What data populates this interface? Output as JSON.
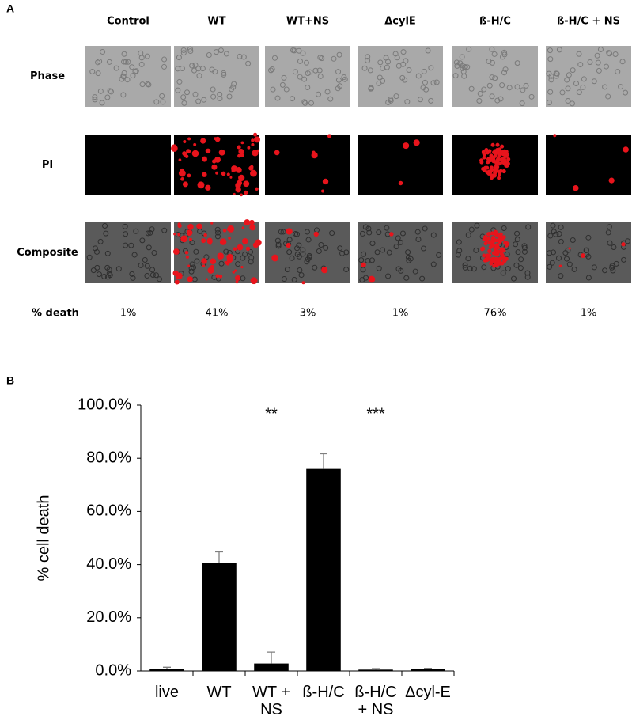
{
  "panel_a": {
    "label": "A",
    "columns": [
      "Control",
      "WT",
      "WT+NS",
      "ΔcylE",
      "ß-H/C",
      "ß-H/C + NS"
    ],
    "rows": [
      "Phase",
      "PI",
      "Composite"
    ],
    "death_label": "% death",
    "death_values": [
      "1%",
      "41%",
      "3%",
      "1%",
      "76%",
      "1%"
    ]
  },
  "chart_data": {
    "type": "bar",
    "panel_label": "B",
    "ylabel": "% cell death",
    "categories": [
      "live",
      "WT",
      "WT +\nNS",
      "ß-H/C",
      "ß-H/C\n+ NS",
      "Δcyl-E"
    ],
    "values": [
      0.7,
      40.5,
      2.8,
      76,
      0.5,
      0.7
    ],
    "errors": [
      0.7,
      4.3,
      4.3,
      5.7,
      0.4,
      0.3
    ],
    "significance": [
      null,
      null,
      "**",
      null,
      "***",
      null
    ],
    "color": "#000000",
    "ylim": [
      0,
      100
    ],
    "yticks": [
      {
        "value": 0,
        "label": "0.0%"
      },
      {
        "value": 20,
        "label": "20.0%"
      },
      {
        "value": 40,
        "label": "40.0%"
      },
      {
        "value": 60,
        "label": "60.0%"
      },
      {
        "value": 80,
        "label": "80.0%"
      },
      {
        "value": 100,
        "label": "100.0%"
      }
    ]
  }
}
